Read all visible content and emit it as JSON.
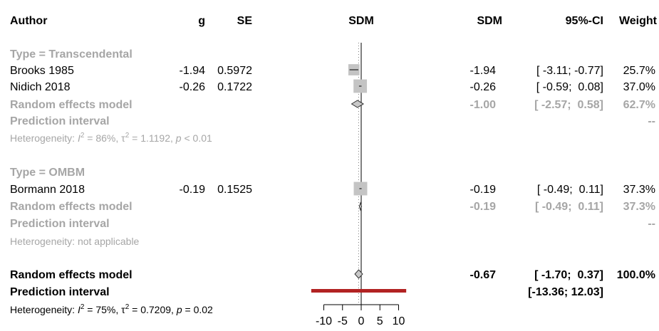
{
  "header": {
    "author": "Author",
    "g": "g",
    "se": "SE",
    "sdm_plot": "SDM",
    "sdm": "SDM",
    "ci": "95%-CI",
    "weight": "Weight"
  },
  "groups": [
    {
      "label": "Type = Transcendental",
      "studies": [
        {
          "author": "Brooks 1985",
          "g": "-1.94",
          "se": "0.5972",
          "sdm_text": "-1.94",
          "ci_text": "[ -3.11; -0.77]",
          "weight_text": "25.7%"
        },
        {
          "author": "Nidich 2018",
          "g": "-0.26",
          "se": "0.1722",
          "sdm_text": "-0.26",
          "ci_text": "[ -0.59;  0.08]",
          "weight_text": "37.0%"
        }
      ],
      "re_label": "Random effects model",
      "re_sdm": "-1.00",
      "re_ci": "[ -2.57;  0.58]",
      "re_weight": "62.7%",
      "pi_label": "Prediction interval",
      "pi_weight": "--",
      "het_prefix": "Heterogeneity: ",
      "het_i_letter": "I",
      "het_i_sup": "2",
      "het_i_val": " = 86%, ",
      "het_tau": "τ",
      "het_tau_sup": "2",
      "het_tau_val": " = 1.1192, ",
      "het_p_letter": "p",
      "het_p_val": " < 0.01"
    },
    {
      "label": "Type = OMBM",
      "studies": [
        {
          "author": "Bormann 2018",
          "g": "-0.19",
          "se": "0.1525",
          "sdm_text": "-0.19",
          "ci_text": "[ -0.49;  0.11]",
          "weight_text": "37.3%"
        }
      ],
      "re_label": "Random effects model",
      "re_sdm": "-0.19",
      "re_ci": "[ -0.49;  0.11]",
      "re_weight": "37.3%",
      "pi_label": "Prediction interval",
      "pi_weight": "--",
      "het_text": "Heterogeneity: not applicable"
    }
  ],
  "overall": {
    "re_label": "Random effects model",
    "re_sdm": "-0.67",
    "re_ci": "[ -1.70;  0.37]",
    "re_weight": "100.0%",
    "pi_label": "Prediction interval",
    "pi_ci": "[-13.36; 12.03]",
    "het_prefix": "Heterogeneity: ",
    "het_i_letter": "I",
    "het_i_sup": "2",
    "het_i_val": " = 75%, ",
    "het_tau": "τ",
    "het_tau_sup": "2",
    "het_tau_val": " = 0.7209, ",
    "het_p_letter": "p",
    "het_p_val": " = 0.02"
  },
  "colors": {
    "subgroup_grey": "#a6a6a6",
    "square_grey": "#c4c4c4",
    "prediction_red": "#b22222",
    "null_line": "#000000"
  },
  "chart_data": {
    "type": "forest",
    "xlim": [
      -10,
      10
    ],
    "ticks": [
      -10,
      -5,
      0,
      5,
      10
    ],
    "null_line": 0,
    "studies": [
      {
        "name": "Brooks 1985",
        "group": "Type = Transcendental",
        "sdm": -1.94,
        "lower": -3.11,
        "upper": -0.77,
        "weight": 25.7
      },
      {
        "name": "Nidich 2018",
        "group": "Type = Transcendental",
        "sdm": -0.26,
        "lower": -0.59,
        "upper": 0.08,
        "weight": 37.0
      },
      {
        "name": "Bormann 2018",
        "group": "Type = OMBM",
        "sdm": -0.19,
        "lower": -0.49,
        "upper": 0.11,
        "weight": 37.3
      }
    ],
    "subgroup_summaries": [
      {
        "group": "Type = Transcendental",
        "sdm": -1.0,
        "lower": -2.57,
        "upper": 0.58
      },
      {
        "group": "Type = OMBM",
        "sdm": -0.19,
        "lower": -0.49,
        "upper": 0.11
      }
    ],
    "overall_summary": {
      "sdm": -0.67,
      "lower": -1.7,
      "upper": 0.37
    },
    "overall_prediction_interval": {
      "lower": -13.36,
      "upper": 12.03
    },
    "pooled_mean_dotted_line": -0.67
  }
}
